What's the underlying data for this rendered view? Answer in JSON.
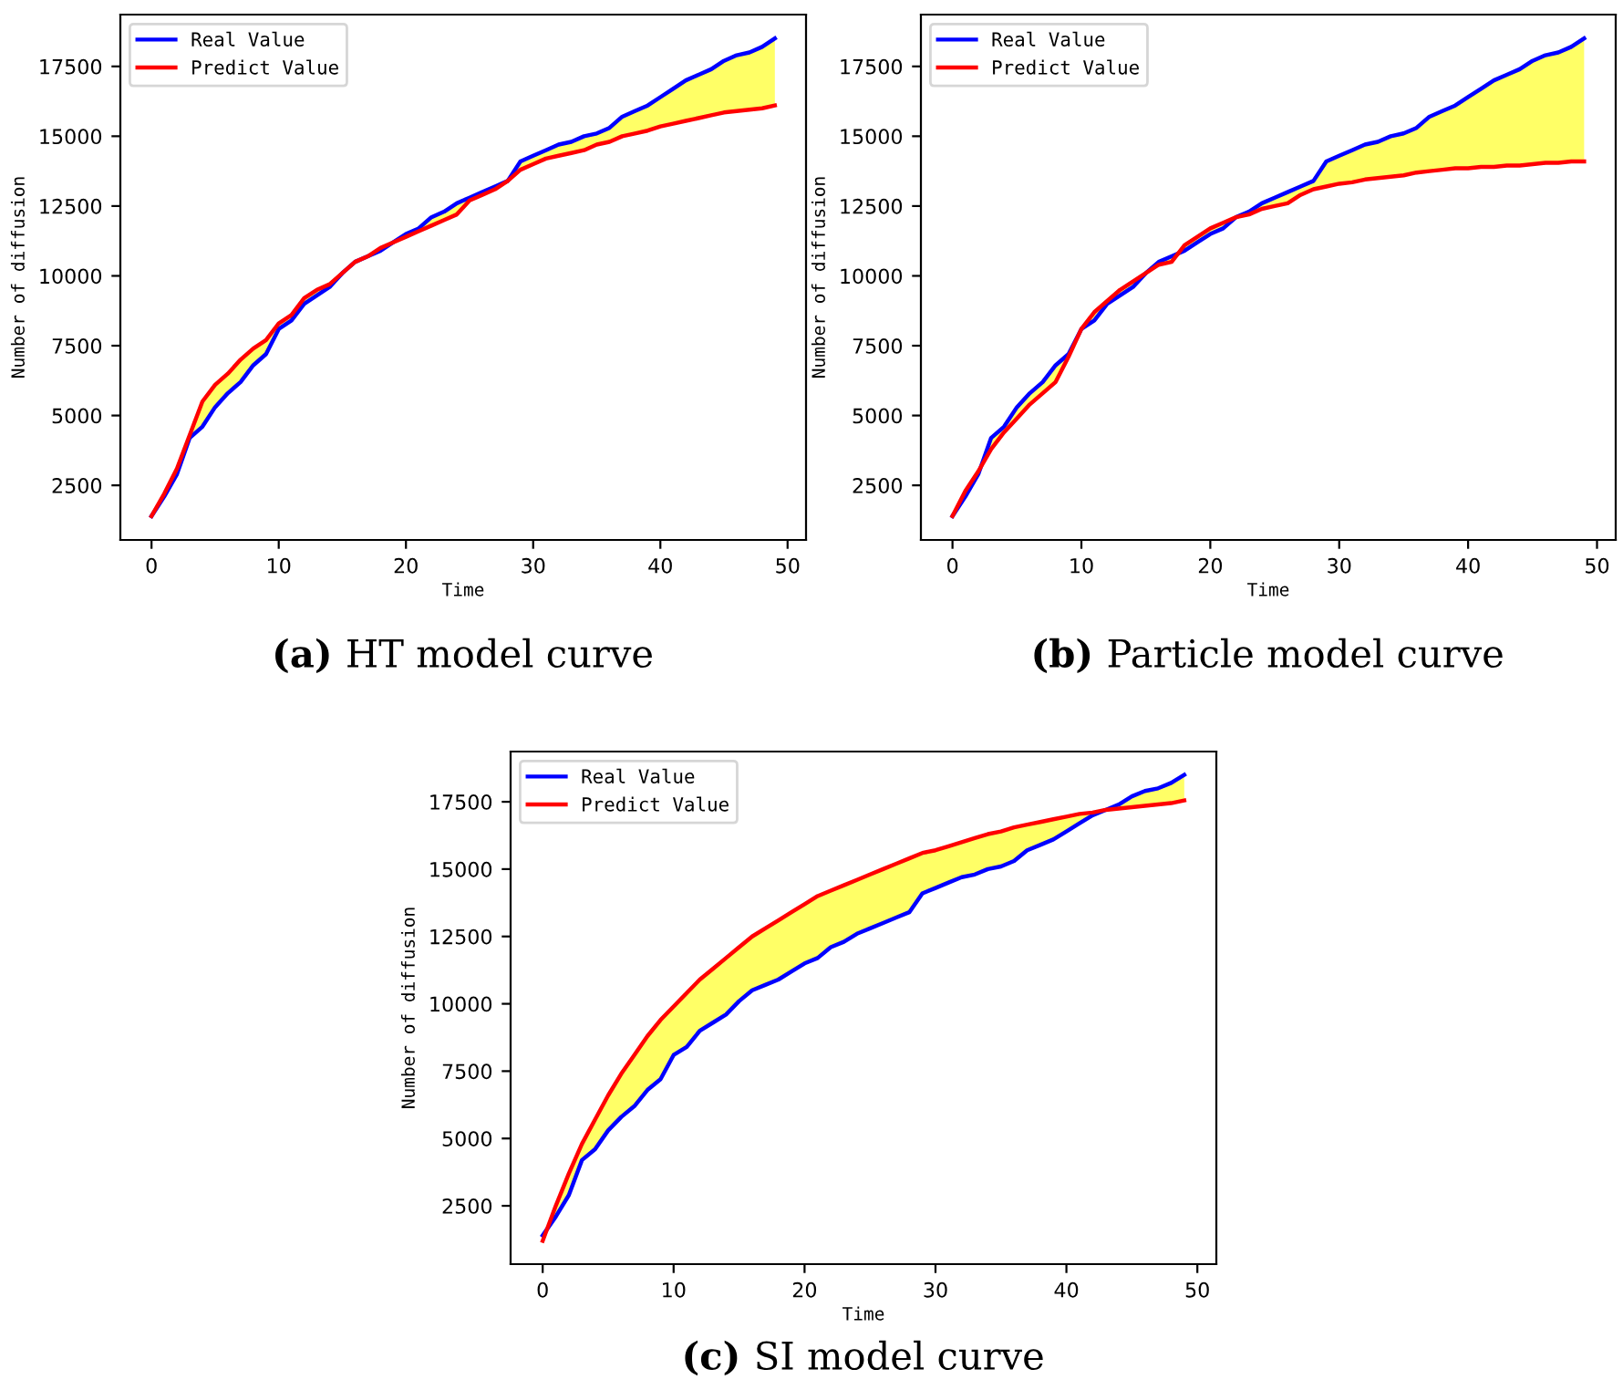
{
  "chart_data": [
    {
      "type": "line",
      "title": "(a) HT model curve",
      "xlabel": "Time",
      "ylabel": "Number of diffusion",
      "xlim": [
        -2.45,
        51.45
      ],
      "ylim": [
        545,
        19355
      ],
      "xticks": [
        0,
        10,
        20,
        30,
        40,
        50
      ],
      "yticks": [
        2500,
        5000,
        7500,
        10000,
        12500,
        15000,
        17500
      ],
      "legend": "top left",
      "grid": false,
      "x": [
        0,
        1,
        2,
        3,
        4,
        5,
        6,
        7,
        8,
        9,
        10,
        11,
        12,
        13,
        14,
        15,
        16,
        17,
        18,
        19,
        20,
        21,
        22,
        23,
        24,
        25,
        26,
        27,
        28,
        29,
        30,
        31,
        32,
        33,
        34,
        35,
        36,
        37,
        38,
        39,
        40,
        41,
        42,
        43,
        44,
        45,
        46,
        47,
        48,
        49
      ],
      "series": [
        {
          "name": "Real Value",
          "color": "#0000ff",
          "values": [
            1400,
            2100,
            2900,
            4200,
            4600,
            5300,
            5800,
            6200,
            6800,
            7200,
            8100,
            8400,
            9000,
            9300,
            9600,
            10100,
            10500,
            10700,
            10900,
            11200,
            11500,
            11700,
            12100,
            12300,
            12600,
            12800,
            13000,
            13200,
            13400,
            14100,
            14300,
            14500,
            14700,
            14800,
            15000,
            15100,
            15300,
            15700,
            15900,
            16100,
            16400,
            16700,
            17000,
            17200,
            17400,
            17700,
            17900,
            18000,
            18200,
            18500
          ]
        },
        {
          "name": "Predict Value",
          "color": "#ff0000",
          "values": [
            1400,
            2200,
            3100,
            4300,
            5500,
            6100,
            6500,
            7000,
            7400,
            7700,
            8300,
            8600,
            9200,
            9500,
            9700,
            10100,
            10500,
            10700,
            11000,
            11200,
            11400,
            11600,
            11800,
            12000,
            12200,
            12700,
            12900,
            13100,
            13400,
            13800,
            14000,
            14200,
            14300,
            14400,
            14500,
            14700,
            14800,
            15000,
            15100,
            15200,
            15350,
            15450,
            15550,
            15650,
            15750,
            15850,
            15900,
            15950,
            16000,
            16100
          ],
          "lower": [
            1400,
            2100,
            2900,
            4200,
            4600,
            5300,
            5800,
            6200,
            6800,
            7200,
            8100,
            8400,
            9000,
            9300,
            9600,
            10100,
            10500,
            10700,
            10900,
            11200,
            11400,
            11600,
            11800,
            12000,
            12200,
            12700,
            12900,
            13100,
            13400,
            13800,
            14000,
            14200,
            14300,
            14400,
            14500,
            14700,
            14800,
            15000,
            15100,
            15200,
            15350,
            15450,
            15550,
            15650,
            15750,
            15850,
            15900,
            15950,
            16000,
            16100
          ],
          "upper": [
            1400,
            2200,
            3100,
            4300,
            5500,
            6100,
            6500,
            7000,
            7400,
            7700,
            8300,
            8600,
            9200,
            9500,
            9700,
            10100,
            10500,
            10700,
            11000,
            11200,
            11500,
            11700,
            12100,
            12300,
            12600,
            12800,
            13000,
            13200,
            13400,
            14100,
            14300,
            14500,
            14700,
            14800,
            15000,
            15100,
            15300,
            15700,
            15900,
            16100,
            16400,
            16700,
            17000,
            17200,
            17400,
            17700,
            17900,
            18000,
            18200,
            18500
          ]
        }
      ]
    },
    {
      "type": "line",
      "title": "(b) Particle model curve",
      "xlabel": "Time",
      "ylabel": "Number of diffusion",
      "xlim": [
        -2.45,
        51.45
      ],
      "ylim": [
        545,
        19355
      ],
      "xticks": [
        0,
        10,
        20,
        30,
        40,
        50
      ],
      "yticks": [
        2500,
        5000,
        7500,
        10000,
        12500,
        15000,
        17500
      ],
      "legend": "top left",
      "grid": false,
      "x": [
        0,
        1,
        2,
        3,
        4,
        5,
        6,
        7,
        8,
        9,
        10,
        11,
        12,
        13,
        14,
        15,
        16,
        17,
        18,
        19,
        20,
        21,
        22,
        23,
        24,
        25,
        26,
        27,
        28,
        29,
        30,
        31,
        32,
        33,
        34,
        35,
        36,
        37,
        38,
        39,
        40,
        41,
        42,
        43,
        44,
        45,
        46,
        47,
        48,
        49
      ],
      "series": [
        {
          "name": "Real Value",
          "color": "#0000ff",
          "values": [
            1400,
            2100,
            2900,
            4200,
            4600,
            5300,
            5800,
            6200,
            6800,
            7200,
            8100,
            8400,
            9000,
            9300,
            9600,
            10100,
            10500,
            10700,
            10900,
            11200,
            11500,
            11700,
            12100,
            12300,
            12600,
            12800,
            13000,
            13200,
            13400,
            14100,
            14300,
            14500,
            14700,
            14800,
            15000,
            15100,
            15300,
            15700,
            15900,
            16100,
            16400,
            16700,
            17000,
            17200,
            17400,
            17700,
            17900,
            18000,
            18200,
            18500
          ]
        },
        {
          "name": "Predict Value",
          "color": "#ff0000",
          "values": [
            1400,
            2300,
            3000,
            3800,
            4400,
            4900,
            5400,
            5800,
            6200,
            7100,
            8100,
            8700,
            9100,
            9500,
            9800,
            10100,
            10400,
            10500,
            11100,
            11400,
            11700,
            11900,
            12100,
            12200,
            12400,
            12500,
            12600,
            12900,
            13100,
            13200,
            13300,
            13350,
            13450,
            13500,
            13550,
            13600,
            13700,
            13750,
            13800,
            13850,
            13850,
            13900,
            13900,
            13950,
            13950,
            14000,
            14050,
            14050,
            14100,
            14100
          ],
          "lower": [
            1400,
            2100,
            2900,
            3800,
            4400,
            4900,
            5400,
            5800,
            6200,
            7100,
            8100,
            8400,
            9000,
            9300,
            9600,
            10100,
            10400,
            10500,
            10900,
            11200,
            11500,
            11700,
            12100,
            12200,
            12400,
            12500,
            12600,
            12900,
            13100,
            13200,
            13300,
            13350,
            13450,
            13500,
            13550,
            13600,
            13700,
            13750,
            13800,
            13850,
            13850,
            13900,
            13900,
            13950,
            13950,
            14000,
            14050,
            14050,
            14100,
            14100
          ],
          "upper": [
            1400,
            2300,
            3000,
            4200,
            4600,
            5300,
            5800,
            6200,
            6800,
            7200,
            8100,
            8700,
            9100,
            9500,
            9800,
            10100,
            10500,
            10700,
            11100,
            11400,
            11700,
            11900,
            12100,
            12300,
            12600,
            12800,
            13000,
            13200,
            13400,
            14100,
            14300,
            14500,
            14700,
            14800,
            15000,
            15100,
            15300,
            15700,
            15900,
            16100,
            16400,
            16700,
            17000,
            17200,
            17400,
            17700,
            17900,
            18000,
            18200,
            18500
          ]
        }
      ]
    },
    {
      "type": "line",
      "title": "(c) SI model curve",
      "xlabel": "Time",
      "ylabel": "Number of diffusion",
      "xlim": [
        -2.45,
        51.45
      ],
      "ylim": [
        335,
        19365
      ],
      "xticks": [
        0,
        10,
        20,
        30,
        40,
        50
      ],
      "yticks": [
        2500,
        5000,
        7500,
        10000,
        12500,
        15000,
        17500
      ],
      "legend": "top left",
      "grid": false,
      "x": [
        0,
        1,
        2,
        3,
        4,
        5,
        6,
        7,
        8,
        9,
        10,
        11,
        12,
        13,
        14,
        15,
        16,
        17,
        18,
        19,
        20,
        21,
        22,
        23,
        24,
        25,
        26,
        27,
        28,
        29,
        30,
        31,
        32,
        33,
        34,
        35,
        36,
        37,
        38,
        39,
        40,
        41,
        42,
        43,
        44,
        45,
        46,
        47,
        48,
        49
      ],
      "series": [
        {
          "name": "Real Value",
          "color": "#0000ff",
          "values": [
            1400,
            2100,
            2900,
            4200,
            4600,
            5300,
            5800,
            6200,
            6800,
            7200,
            8100,
            8400,
            9000,
            9300,
            9600,
            10100,
            10500,
            10700,
            10900,
            11200,
            11500,
            11700,
            12100,
            12300,
            12600,
            12800,
            13000,
            13200,
            13400,
            14100,
            14300,
            14500,
            14700,
            14800,
            15000,
            15100,
            15300,
            15700,
            15900,
            16100,
            16400,
            16700,
            17000,
            17200,
            17400,
            17700,
            17900,
            18000,
            18200,
            18500
          ]
        },
        {
          "name": "Predict Value",
          "color": "#ff0000",
          "values": [
            1200,
            2500,
            3700,
            4800,
            5700,
            6600,
            7400,
            8100,
            8800,
            9400,
            9900,
            10400,
            10900,
            11300,
            11700,
            12100,
            12500,
            12800,
            13100,
            13400,
            13700,
            14000,
            14200,
            14400,
            14600,
            14800,
            15000,
            15200,
            15400,
            15600,
            15700,
            15850,
            16000,
            16150,
            16300,
            16400,
            16550,
            16650,
            16750,
            16850,
            16950,
            17050,
            17100,
            17200,
            17250,
            17300,
            17350,
            17400,
            17450,
            17550
          ],
          "lower": [
            1200,
            2100,
            2900,
            4200,
            4600,
            5300,
            5800,
            6200,
            6800,
            7200,
            8100,
            8400,
            9000,
            9300,
            9600,
            10100,
            10500,
            10700,
            10900,
            11200,
            11500,
            11700,
            12100,
            12300,
            12600,
            12800,
            13000,
            13200,
            13400,
            14100,
            14300,
            14500,
            14700,
            14800,
            15000,
            15100,
            15300,
            15700,
            15900,
            16100,
            16400,
            16700,
            17000,
            17200,
            17250,
            17300,
            17350,
            17400,
            17450,
            17550
          ],
          "upper": [
            1400,
            2500,
            3700,
            4800,
            5700,
            6600,
            7400,
            8100,
            8800,
            9400,
            9900,
            10400,
            10900,
            11300,
            11700,
            12100,
            12500,
            12800,
            13100,
            13400,
            13700,
            14000,
            14200,
            14400,
            14600,
            14800,
            15000,
            15200,
            15400,
            15600,
            15700,
            15850,
            16000,
            16150,
            16300,
            16400,
            16550,
            16650,
            16750,
            16850,
            16950,
            17050,
            17100,
            17200,
            17400,
            17700,
            17900,
            18000,
            18200,
            18500
          ]
        }
      ]
    }
  ]
}
